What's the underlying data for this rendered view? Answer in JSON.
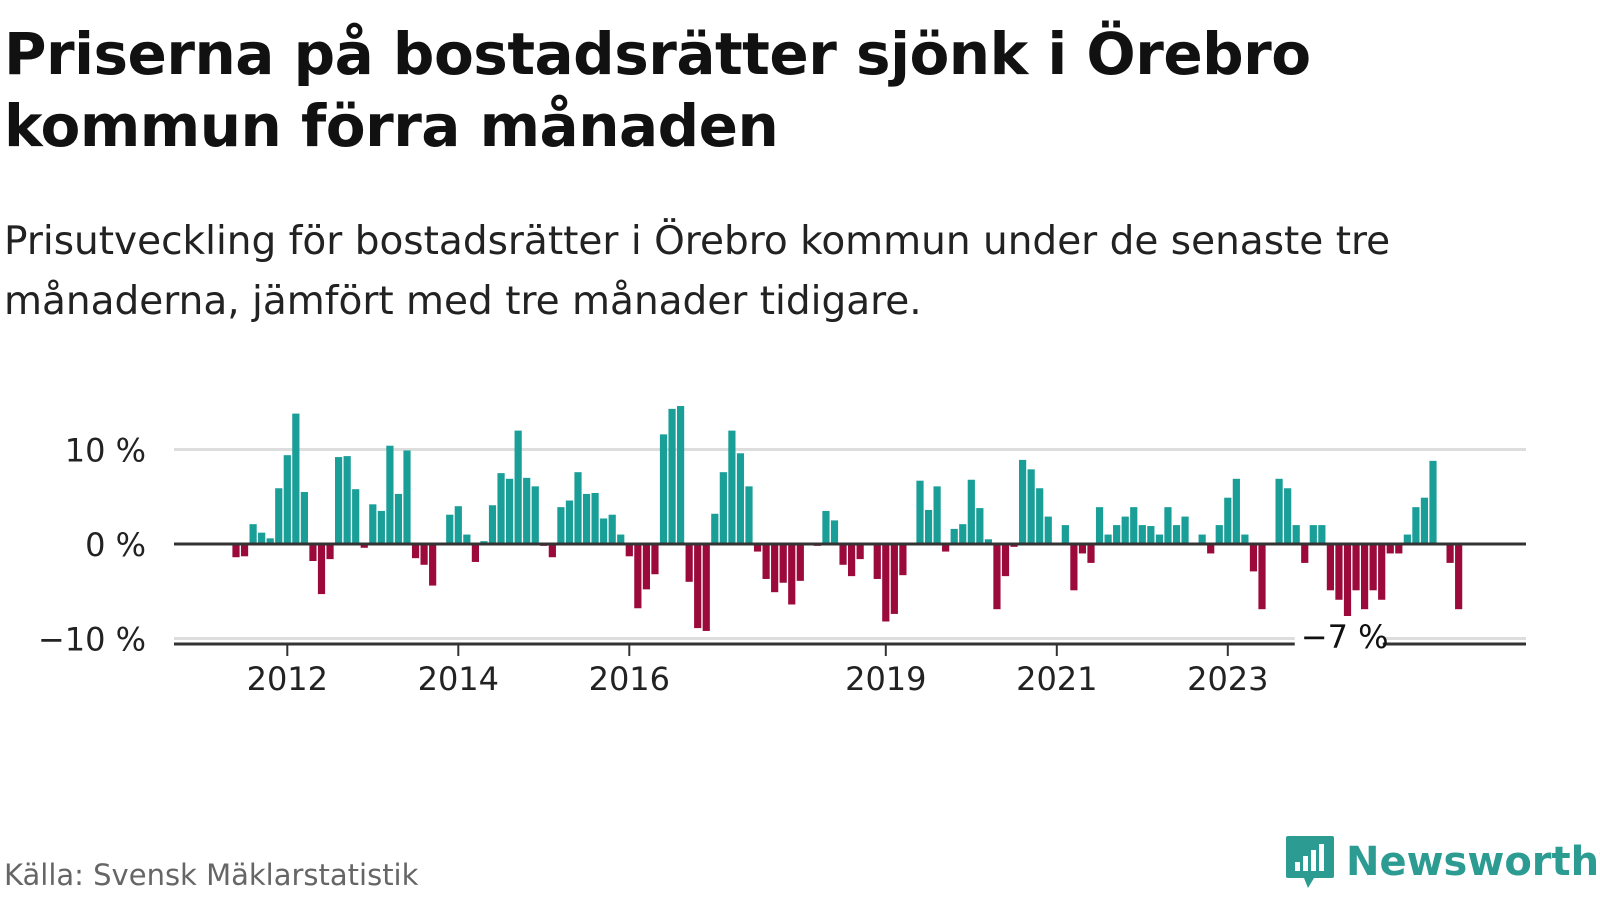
{
  "title": "Priserna på bostadsrätter sjönk i Örebro kommun förra månaden",
  "subtitle": "Prisutveckling för bostadsrätter i Örebro kommun under de senaste tre månaderna, jämfört med tre månader tidigare.",
  "source": "Källa: Svensk Mäklarstatistik",
  "brand": "Newsworthy",
  "colors": {
    "positive": "#1a9e98",
    "negative": "#9b0a3a",
    "grid": "#dddddd",
    "zero": "#333333"
  },
  "chart_data": {
    "type": "bar",
    "title": "",
    "xlabel": "",
    "ylabel": "",
    "ylim": [
      -10,
      15
    ],
    "y_ticks": [
      {
        "value": 10,
        "label": "10 %"
      },
      {
        "value": 0,
        "label": "0 %"
      },
      {
        "value": -10,
        "label": "−10 %"
      }
    ],
    "x_ticks": [
      {
        "index": 6,
        "label": "2012"
      },
      {
        "index": 26,
        "label": "2014"
      },
      {
        "index": 46,
        "label": "2016"
      },
      {
        "index": 76,
        "label": "2019"
      },
      {
        "index": 96,
        "label": "2021"
      },
      {
        "index": 116,
        "label": "2023"
      }
    ],
    "annotation": {
      "label": "−7 %",
      "index": 125
    },
    "values": [
      -1.4,
      -1.3,
      2.1,
      1.2,
      0.6,
      5.9,
      9.4,
      13.8,
      5.5,
      -1.8,
      -5.3,
      -1.6,
      9.2,
      9.3,
      5.8,
      -0.4,
      4.2,
      3.5,
      10.4,
      5.3,
      9.9,
      -1.5,
      -2.2,
      -4.4,
      -0.1,
      3.1,
      4.0,
      1.0,
      -1.9,
      0.3,
      4.1,
      7.5,
      6.9,
      12.0,
      7.0,
      6.1,
      -0.2,
      -1.4,
      3.9,
      4.6,
      7.6,
      5.3,
      5.4,
      2.7,
      3.1,
      1.0,
      -1.3,
      -6.8,
      -4.8,
      -3.2,
      11.6,
      14.3,
      14.6,
      -4.0,
      -8.9,
      -9.2,
      3.2,
      7.6,
      12.0,
      9.6,
      6.1,
      -0.8,
      -3.7,
      -5.1,
      -4.1,
      -6.4,
      -3.9,
      -0.1,
      -0.2,
      3.5,
      2.5,
      -2.2,
      -3.4,
      -1.6,
      0.0,
      -3.7,
      -8.2,
      -7.4,
      -3.3,
      -0.1,
      6.7,
      3.6,
      6.1,
      -0.8,
      1.6,
      2.1,
      6.8,
      3.8,
      0.5,
      -6.9,
      -3.4,
      -0.3,
      8.9,
      7.9,
      5.9,
      2.9,
      0.0,
      2.0,
      -4.9,
      -1.0,
      -2.0,
      3.9,
      1.0,
      2.0,
      2.9,
      3.9,
      2.0,
      1.9,
      1.0,
      3.9,
      2.0,
      2.9,
      0.0,
      1.0,
      -1.0,
      2.0,
      4.9,
      6.9,
      1.0,
      -2.9,
      -6.9,
      0.0,
      6.9,
      5.9,
      2.0,
      -2.0,
      2.0,
      2.0,
      -4.9,
      -5.9,
      -7.9,
      -4.9,
      -6.9,
      -4.9,
      -5.9,
      -1.0,
      -1.0,
      1.0,
      3.9,
      4.9,
      8.8,
      0.0,
      -2.0,
      -6.9
    ]
  }
}
